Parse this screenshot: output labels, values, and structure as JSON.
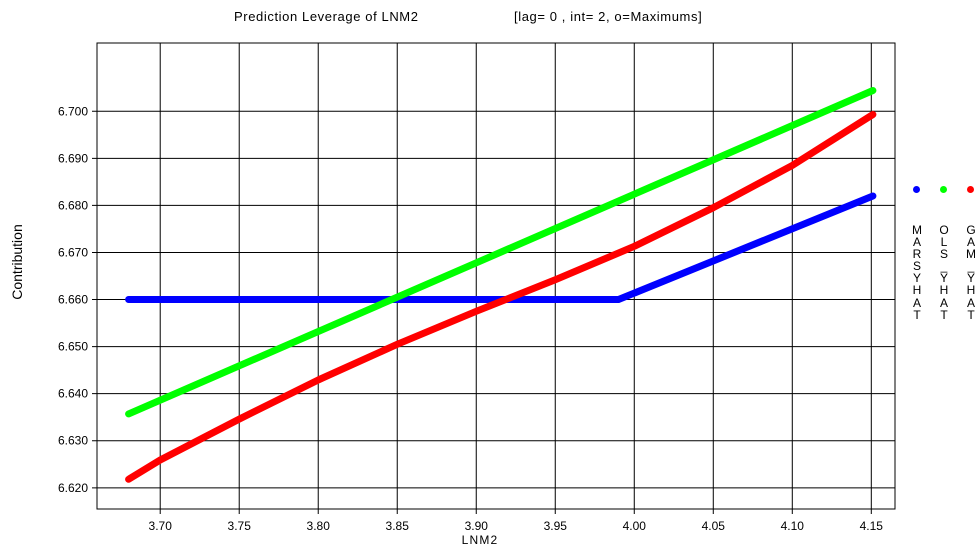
{
  "chart_data": {
    "type": "line",
    "title": "Prediction Leverage of LNM2",
    "subtitle": "[lag= 0 , int= 2, o=Maximums]",
    "xlabel": "LNM2",
    "ylabel": "Contribution",
    "xlim": [
      3.66,
      4.165
    ],
    "ylim": [
      6.6155,
      6.7145
    ],
    "x_ticks": [
      "3.70",
      "3.75",
      "3.80",
      "3.85",
      "3.90",
      "3.95",
      "4.00",
      "4.05",
      "4.10",
      "4.15"
    ],
    "y_ticks": [
      "6.620",
      "6.630",
      "6.640",
      "6.650",
      "6.660",
      "6.670",
      "6.680",
      "6.690",
      "6.700"
    ],
    "grid": true,
    "legend_position": "right",
    "series": [
      {
        "name": "MARSYHAT",
        "color": "#0000ff",
        "x": [
          3.68,
          3.99,
          4.151
        ],
        "y": [
          6.66,
          6.66,
          6.682
        ]
      },
      {
        "name": "OLS_YHAT",
        "color": "#00ff00",
        "x": [
          3.68,
          4.151
        ],
        "y": [
          6.6357,
          6.7044
        ]
      },
      {
        "name": "GAM_YHAT",
        "color": "#ff0000",
        "x": [
          3.68,
          3.7,
          3.75,
          3.8,
          3.85,
          3.9,
          3.95,
          4.0,
          4.05,
          4.1,
          4.151
        ],
        "y": [
          6.6218,
          6.6259,
          6.6346,
          6.6429,
          6.6505,
          6.6575,
          6.6642,
          6.6713,
          6.6795,
          6.6885,
          6.6993
        ]
      }
    ]
  }
}
